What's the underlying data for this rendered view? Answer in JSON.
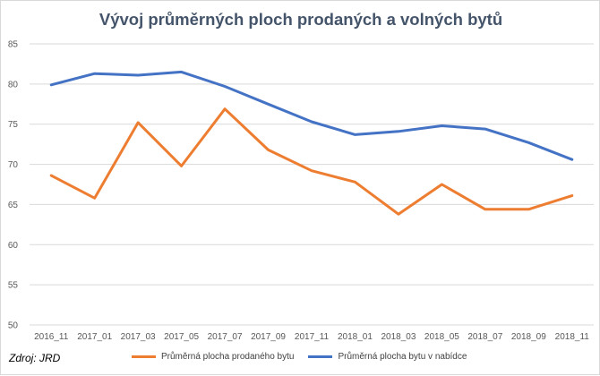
{
  "title": "Vývoj průměrných ploch prodaných a volných bytů",
  "source_note": "Zdroj: JRD",
  "colors": {
    "sold": "#ed7d31",
    "offered": "#4472c4",
    "grid": "#d9d9d9",
    "axis_text": "#595959",
    "title": "#44546a"
  },
  "chart_data": {
    "type": "line",
    "title": "Vývoj průměrných ploch prodaných a volných bytů",
    "categories": [
      "2016_11",
      "2017_01",
      "2017_03",
      "2017_05",
      "2017_07",
      "2017_09",
      "2017_11",
      "2018_01",
      "2018_03",
      "2018_05",
      "2018_07",
      "2018_09",
      "2018_11"
    ],
    "y_ticks": [
      50,
      55,
      60,
      65,
      70,
      75,
      80,
      85
    ],
    "ylim": [
      50,
      85
    ],
    "grid": true,
    "legend_position": "bottom",
    "series": [
      {
        "name": "Průměrná plocha prodaného bytu",
        "color": "#ed7d31",
        "values": [
          68.6,
          65.8,
          75.2,
          69.8,
          76.9,
          71.8,
          69.2,
          67.8,
          63.8,
          67.5,
          64.4,
          64.4,
          66.1
        ]
      },
      {
        "name": "Průměrná plocha bytu v nabídce",
        "color": "#4472c4",
        "values": [
          79.9,
          81.3,
          81.1,
          81.5,
          79.7,
          77.5,
          75.3,
          73.7,
          74.1,
          74.8,
          74.4,
          72.7,
          70.6
        ]
      }
    ]
  }
}
